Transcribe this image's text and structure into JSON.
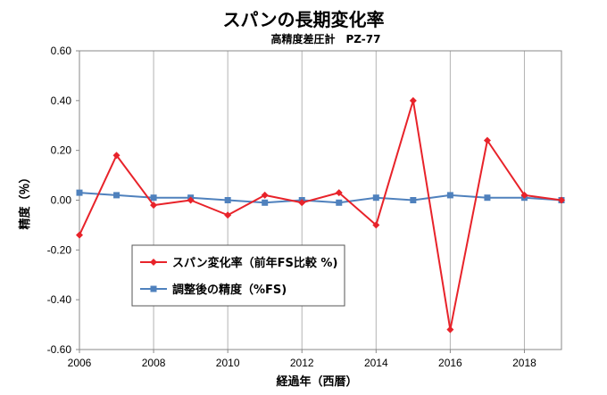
{
  "chart_data": {
    "type": "line",
    "title": "スパンの長期変化率",
    "subtitle": "高精度差圧計　PZ-77",
    "xlabel": "経過年（西暦）",
    "ylabel": "精度（％）",
    "xlim": [
      2006,
      2019
    ],
    "ylim": [
      -0.6,
      0.6
    ],
    "x_ticks": [
      2006,
      2008,
      2010,
      2012,
      2014,
      2016,
      2018
    ],
    "x_tick_labels": [
      "2006",
      "2008",
      "2010",
      "2012",
      "2014",
      "2016",
      "2018"
    ],
    "y_ticks": [
      0.6,
      0.4,
      0.2,
      0.0,
      -0.2,
      -0.4,
      -0.6
    ],
    "y_tick_labels": [
      "0.60",
      "0.40",
      "0.20",
      "0.00",
      "-0.20",
      "-0.40",
      "-0.60"
    ],
    "grid": "vertical",
    "legend_position": "lower-left",
    "x": [
      2006,
      2007,
      2008,
      2009,
      2010,
      2011,
      2012,
      2013,
      2014,
      2015,
      2016,
      2017,
      2018,
      2019
    ],
    "series": [
      {
        "name": "スパン変化率（前年FS比較 %)",
        "color": "#e8232a",
        "marker": "diamond",
        "values": [
          -0.14,
          0.18,
          -0.02,
          0.0,
          -0.06,
          0.02,
          -0.01,
          0.03,
          -0.1,
          0.4,
          -0.52,
          0.24,
          0.02,
          0.0
        ]
      },
      {
        "name": "調整後の精度（%FS)",
        "color": "#4f81bd",
        "marker": "square",
        "values": [
          0.03,
          0.02,
          0.01,
          0.01,
          0.0,
          -0.01,
          0.0,
          -0.01,
          0.01,
          0.0,
          0.02,
          0.01,
          0.01,
          0.0
        ]
      }
    ]
  }
}
